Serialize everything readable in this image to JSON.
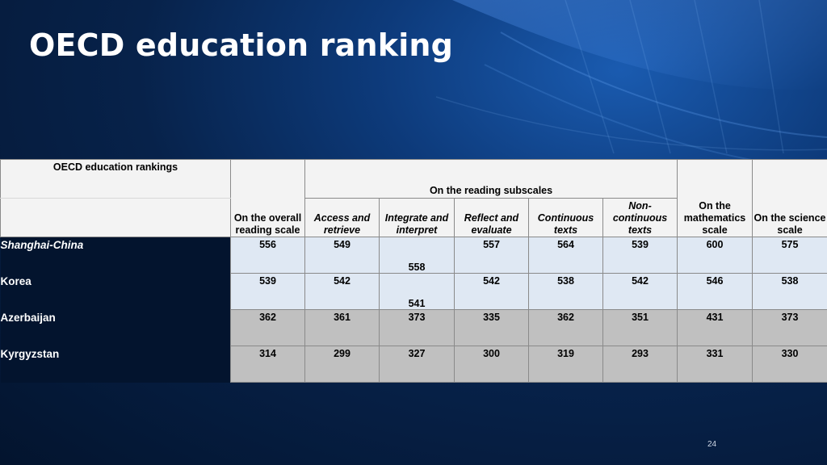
{
  "slide": {
    "title": "OECD education ranking",
    "number": "24"
  },
  "table": {
    "corner_label": "OECD education rankings",
    "overall_header": "On the overall reading scale",
    "subscales_header": "On the reading subscales",
    "subscale_headers": [
      "Access and retrieve",
      "Integrate and interpret",
      "Reflect and evaluate",
      "Continuous texts",
      "Non-continuous texts"
    ],
    "math_header": "On the mathematics scale",
    "science_header": "On the science scale",
    "rows": [
      {
        "country": "Shanghai-China",
        "overall": "556",
        "access": "549",
        "integrate": "558",
        "reflect": "557",
        "continuous": "564",
        "noncontinuous": "539",
        "math": "600",
        "science": "575"
      },
      {
        "country": "Korea",
        "overall": "539",
        "access": "542",
        "integrate": "541",
        "reflect": "542",
        "continuous": "538",
        "noncontinuous": "542",
        "math": "546",
        "science": "538"
      },
      {
        "country": "Azerbaijan",
        "overall": "362",
        "access": "361",
        "integrate": "373",
        "reflect": "335",
        "continuous": "362",
        "noncontinuous": "351",
        "math": "431",
        "science": "373"
      },
      {
        "country": "Kyrgyzstan",
        "overall": "314",
        "access": "299",
        "integrate": "327",
        "reflect": "300",
        "continuous": "319",
        "noncontinuous": "293",
        "math": "331",
        "science": "330"
      }
    ]
  },
  "colors": {
    "background": "#07224a",
    "row_highlight": "#dfe8f3",
    "row_low": "#c0c0c0"
  }
}
